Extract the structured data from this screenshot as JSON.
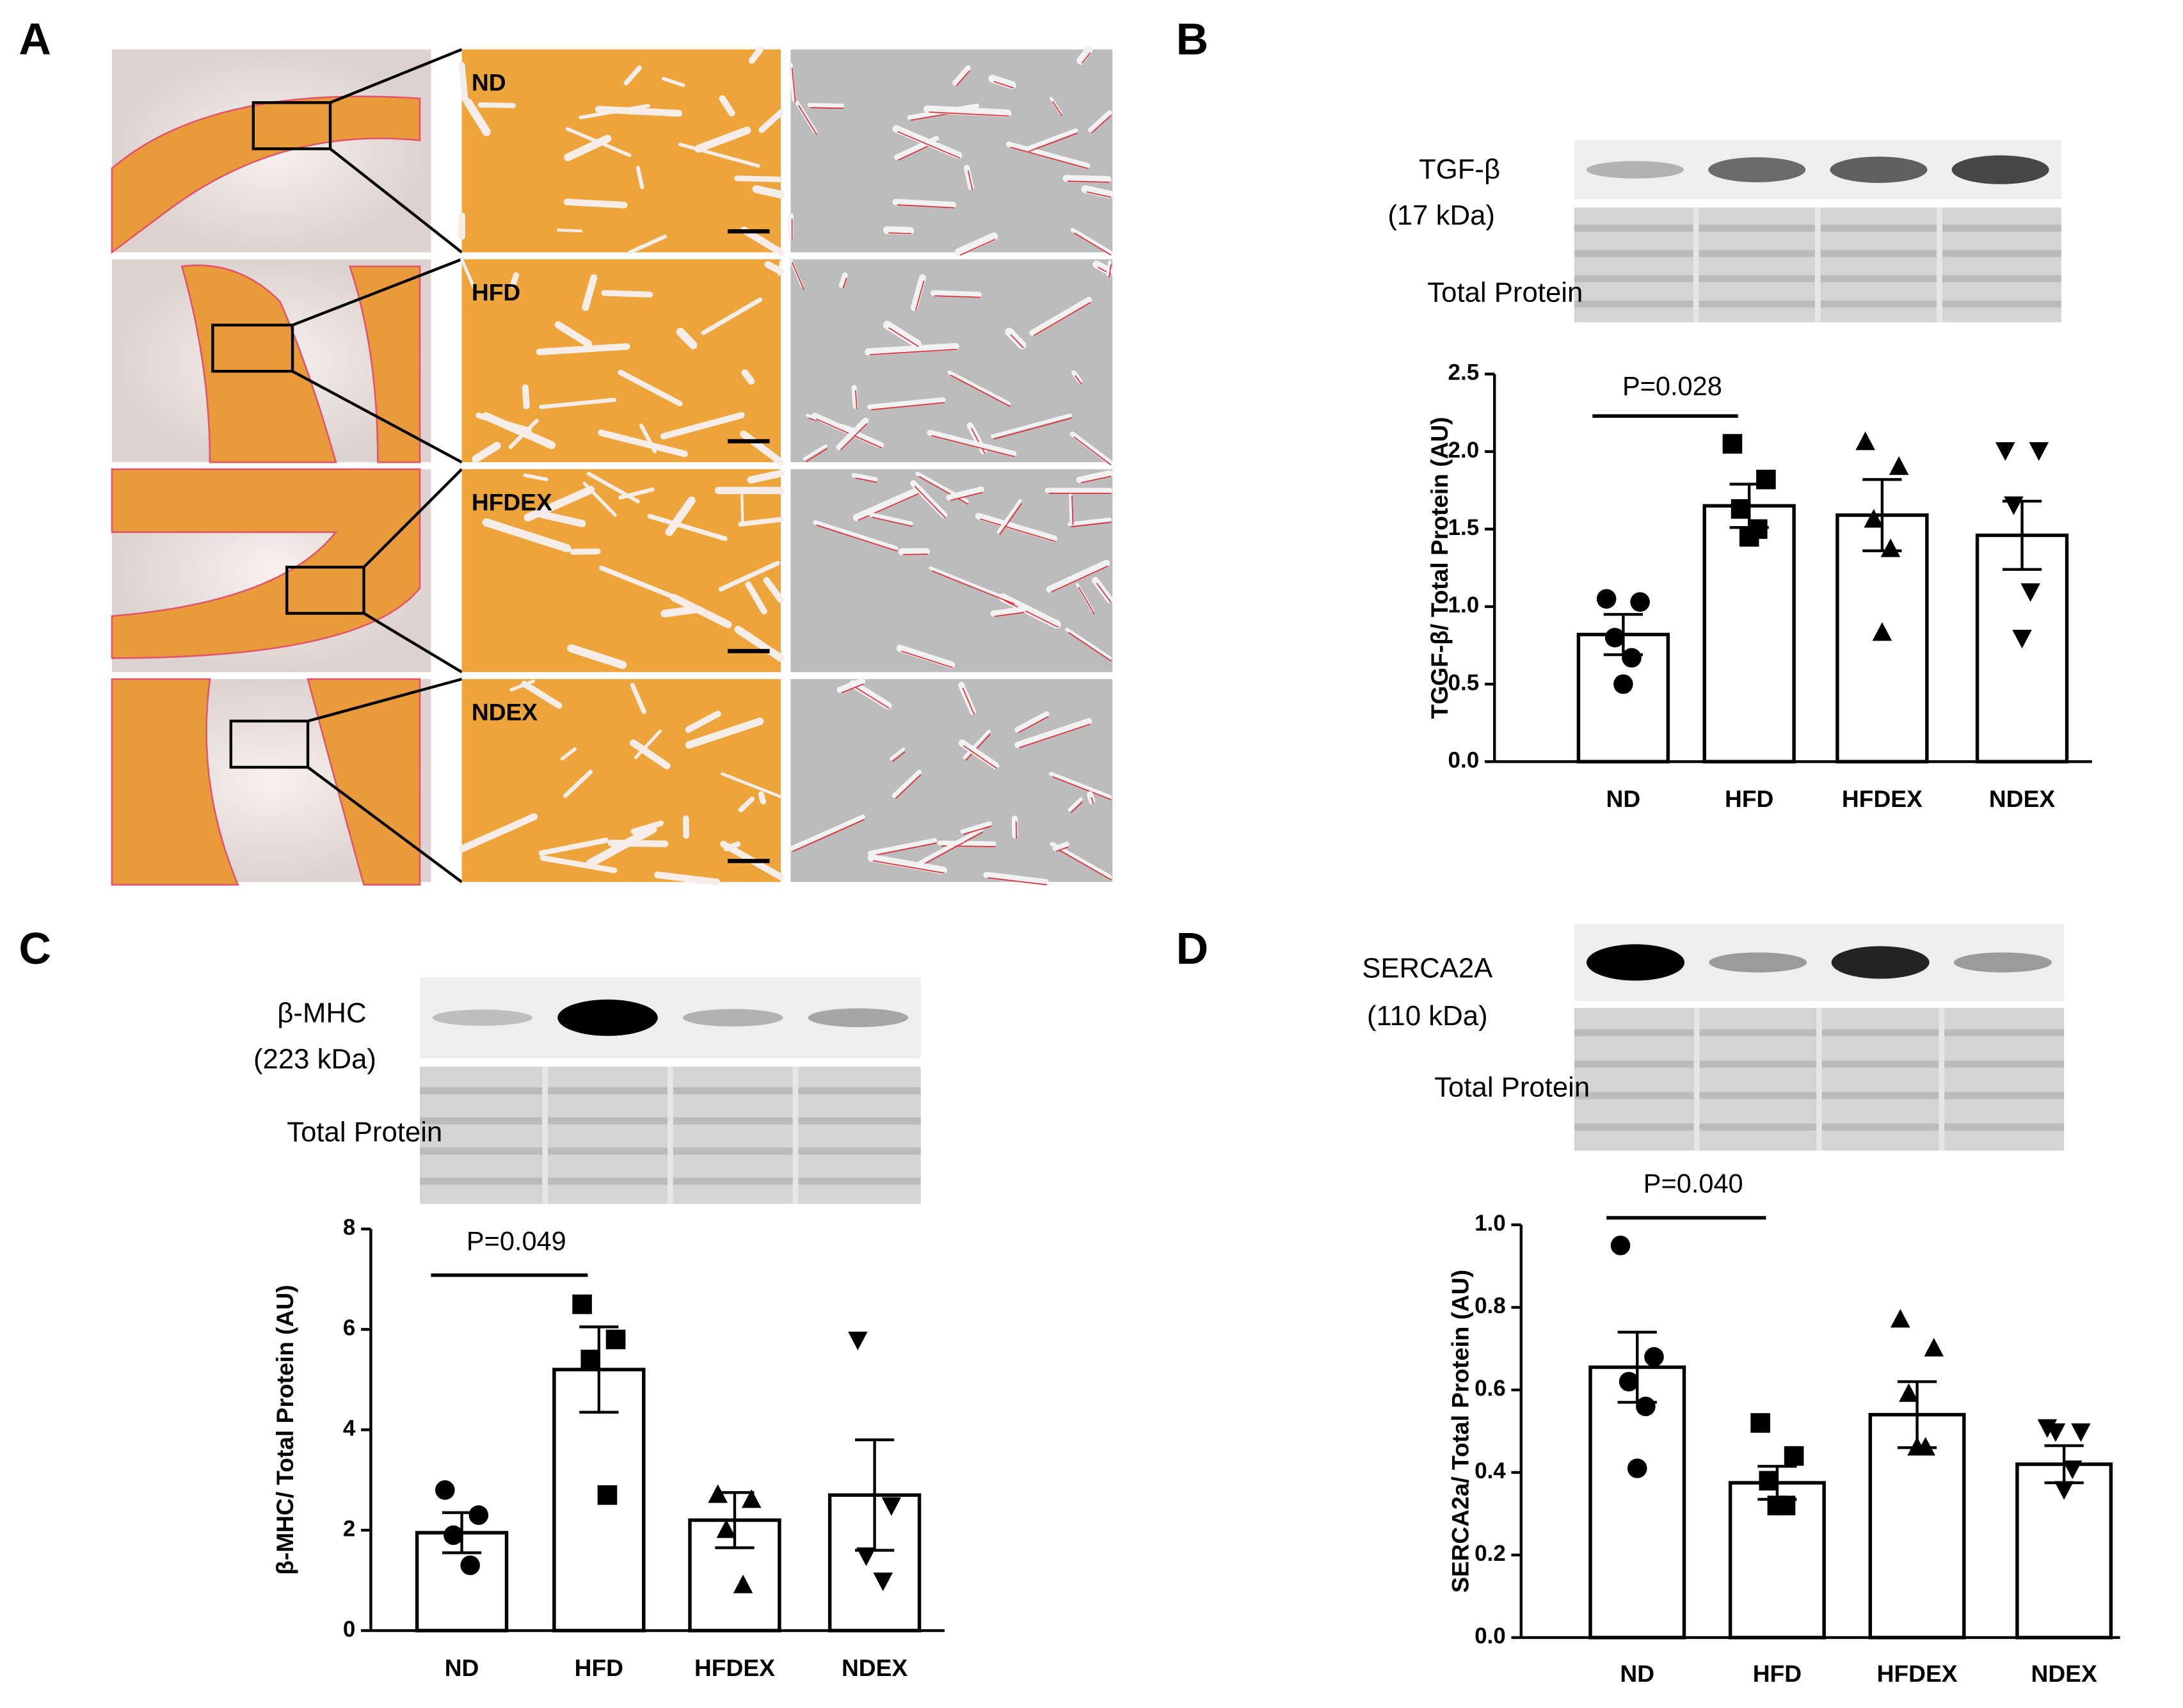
{
  "panel_labels": [
    "A",
    "B",
    "C",
    "D"
  ],
  "histology": {
    "group_labels": [
      "ND",
      "HFD",
      "HFDEX",
      "NDEX"
    ]
  },
  "chart_data": [
    {
      "type": "bar",
      "blot_labels": [
        "TGF-β",
        "(17 kDa)",
        "Total Protein"
      ],
      "ylabel": "TGGF-β/ Total Protein (AU)",
      "annotation": "P=0.028",
      "categories": [
        "ND",
        "HFD",
        "HFDEX",
        "NDEX"
      ],
      "values": [
        0.82,
        1.65,
        1.59,
        1.46
      ],
      "errors": [
        0.13,
        0.14,
        0.23,
        0.22
      ],
      "points": [
        [
          1.05,
          1.03,
          0.8,
          0.67,
          0.5
        ],
        [
          2.05,
          1.82,
          1.63,
          1.5,
          1.45
        ],
        [
          2.06,
          1.9,
          1.56,
          1.37,
          0.83
        ],
        [
          2.01,
          2.01,
          1.66,
          1.1,
          0.8
        ]
      ],
      "markers": [
        "circle",
        "square",
        "triangle-up",
        "triangle-down"
      ],
      "color": "#000000",
      "fill": "#ffffff",
      "ylim": [
        0,
        2.5
      ],
      "yticks": [
        {
          "value": 0,
          "label": "0.0"
        },
        0.5,
        {
          "value": 1,
          "label": "1.0"
        },
        1.5,
        {
          "value": 2,
          "label": "2.0"
        },
        2.5
      ]
    },
    {
      "type": "bar",
      "blot_labels": [
        "β-MHC",
        "(223 kDa)",
        "Total Protein"
      ],
      "ylabel": "β-MHC/ Total Protein (AU)",
      "annotation": "P=0.049",
      "categories": [
        "ND",
        "HFD",
        "HFDEX",
        "NDEX"
      ],
      "values": [
        1.95,
        5.2,
        2.2,
        2.7
      ],
      "errors": [
        0.4,
        0.85,
        0.55,
        1.1
      ],
      "points": [
        [
          2.8,
          2.3,
          1.9,
          1.3
        ],
        [
          6.5,
          5.8,
          5.4,
          2.7
        ],
        [
          2.7,
          2.6,
          2.0,
          0.9
        ],
        [
          5.8,
          2.5,
          1.5,
          1.0
        ]
      ],
      "markers": [
        "circle",
        "square",
        "triangle-up",
        "triangle-down"
      ],
      "color": "#000000",
      "fill": "#ffffff",
      "ylim": [
        0,
        8
      ],
      "yticks": [
        0,
        2,
        4,
        6,
        8
      ]
    },
    {
      "type": "bar",
      "blot_labels": [
        "SERCA2A",
        "(110 kDa)",
        "Total Protein"
      ],
      "ylabel": "SERCA2a/ Total Protein (AU)",
      "annotation": "P=0.040",
      "categories": [
        "ND",
        "HFD",
        "HFDEX",
        "NDEX"
      ],
      "values": [
        0.655,
        0.375,
        0.54,
        0.42
      ],
      "errors": [
        0.085,
        0.04,
        0.08,
        0.045
      ],
      "points": [
        [
          0.95,
          0.68,
          0.62,
          0.56,
          0.41
        ],
        [
          0.52,
          0.44,
          0.38,
          0.32,
          0.32
        ],
        [
          0.77,
          0.7,
          0.59,
          0.46,
          0.46
        ],
        [
          0.51,
          0.5,
          0.5,
          0.41,
          0.36
        ]
      ],
      "markers": [
        "circle",
        "square",
        "triangle-up",
        "triangle-down"
      ],
      "color": "#000000",
      "fill": "#ffffff",
      "ylim": [
        0,
        1
      ],
      "yticks": [
        {
          "value": 0,
          "label": "0.0"
        },
        0.2,
        0.4,
        0.6,
        0.8,
        {
          "value": 1,
          "label": "1.0"
        }
      ]
    }
  ]
}
